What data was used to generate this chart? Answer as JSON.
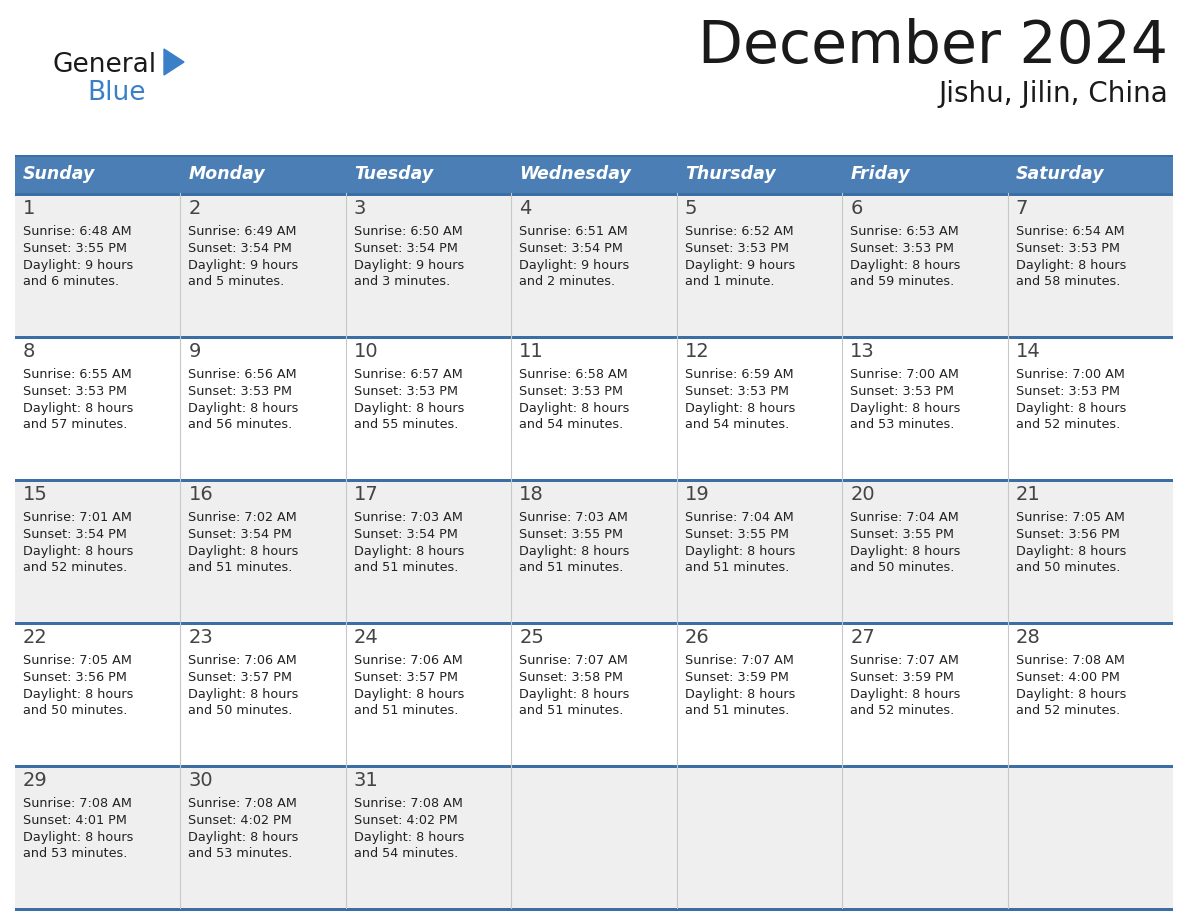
{
  "title": "December 2024",
  "subtitle": "Jishu, Jilin, China",
  "days_of_week": [
    "Sunday",
    "Monday",
    "Tuesday",
    "Wednesday",
    "Thursday",
    "Friday",
    "Saturday"
  ],
  "header_bg": "#4A7EB5",
  "header_text": "#FFFFFF",
  "cell_bg_odd": "#EFEFEF",
  "cell_bg_even": "#FFFFFF",
  "row5_bg": "#EFEFEF",
  "grid_color": "#3A6EA5",
  "title_color": "#1a1a1a",
  "text_color": "#222222",
  "logo_general_color": "#1a1a1a",
  "logo_blue_color": "#3A80C8",
  "days": [
    {
      "day": 1,
      "col": 0,
      "row": 0,
      "sunrise": "6:48 AM",
      "sunset": "3:55 PM",
      "daylight_h": "9 hours",
      "daylight_m": "and 6 minutes."
    },
    {
      "day": 2,
      "col": 1,
      "row": 0,
      "sunrise": "6:49 AM",
      "sunset": "3:54 PM",
      "daylight_h": "9 hours",
      "daylight_m": "and 5 minutes."
    },
    {
      "day": 3,
      "col": 2,
      "row": 0,
      "sunrise": "6:50 AM",
      "sunset": "3:54 PM",
      "daylight_h": "9 hours",
      "daylight_m": "and 3 minutes."
    },
    {
      "day": 4,
      "col": 3,
      "row": 0,
      "sunrise": "6:51 AM",
      "sunset": "3:54 PM",
      "daylight_h": "9 hours",
      "daylight_m": "and 2 minutes."
    },
    {
      "day": 5,
      "col": 4,
      "row": 0,
      "sunrise": "6:52 AM",
      "sunset": "3:53 PM",
      "daylight_h": "9 hours",
      "daylight_m": "and 1 minute."
    },
    {
      "day": 6,
      "col": 5,
      "row": 0,
      "sunrise": "6:53 AM",
      "sunset": "3:53 PM",
      "daylight_h": "8 hours",
      "daylight_m": "and 59 minutes."
    },
    {
      "day": 7,
      "col": 6,
      "row": 0,
      "sunrise": "6:54 AM",
      "sunset": "3:53 PM",
      "daylight_h": "8 hours",
      "daylight_m": "and 58 minutes."
    },
    {
      "day": 8,
      "col": 0,
      "row": 1,
      "sunrise": "6:55 AM",
      "sunset": "3:53 PM",
      "daylight_h": "8 hours",
      "daylight_m": "and 57 minutes."
    },
    {
      "day": 9,
      "col": 1,
      "row": 1,
      "sunrise": "6:56 AM",
      "sunset": "3:53 PM",
      "daylight_h": "8 hours",
      "daylight_m": "and 56 minutes."
    },
    {
      "day": 10,
      "col": 2,
      "row": 1,
      "sunrise": "6:57 AM",
      "sunset": "3:53 PM",
      "daylight_h": "8 hours",
      "daylight_m": "and 55 minutes."
    },
    {
      "day": 11,
      "col": 3,
      "row": 1,
      "sunrise": "6:58 AM",
      "sunset": "3:53 PM",
      "daylight_h": "8 hours",
      "daylight_m": "and 54 minutes."
    },
    {
      "day": 12,
      "col": 4,
      "row": 1,
      "sunrise": "6:59 AM",
      "sunset": "3:53 PM",
      "daylight_h": "8 hours",
      "daylight_m": "and 54 minutes."
    },
    {
      "day": 13,
      "col": 5,
      "row": 1,
      "sunrise": "7:00 AM",
      "sunset": "3:53 PM",
      "daylight_h": "8 hours",
      "daylight_m": "and 53 minutes."
    },
    {
      "day": 14,
      "col": 6,
      "row": 1,
      "sunrise": "7:00 AM",
      "sunset": "3:53 PM",
      "daylight_h": "8 hours",
      "daylight_m": "and 52 minutes."
    },
    {
      "day": 15,
      "col": 0,
      "row": 2,
      "sunrise": "7:01 AM",
      "sunset": "3:54 PM",
      "daylight_h": "8 hours",
      "daylight_m": "and 52 minutes."
    },
    {
      "day": 16,
      "col": 1,
      "row": 2,
      "sunrise": "7:02 AM",
      "sunset": "3:54 PM",
      "daylight_h": "8 hours",
      "daylight_m": "and 51 minutes."
    },
    {
      "day": 17,
      "col": 2,
      "row": 2,
      "sunrise": "7:03 AM",
      "sunset": "3:54 PM",
      "daylight_h": "8 hours",
      "daylight_m": "and 51 minutes."
    },
    {
      "day": 18,
      "col": 3,
      "row": 2,
      "sunrise": "7:03 AM",
      "sunset": "3:55 PM",
      "daylight_h": "8 hours",
      "daylight_m": "and 51 minutes."
    },
    {
      "day": 19,
      "col": 4,
      "row": 2,
      "sunrise": "7:04 AM",
      "sunset": "3:55 PM",
      "daylight_h": "8 hours",
      "daylight_m": "and 51 minutes."
    },
    {
      "day": 20,
      "col": 5,
      "row": 2,
      "sunrise": "7:04 AM",
      "sunset": "3:55 PM",
      "daylight_h": "8 hours",
      "daylight_m": "and 50 minutes."
    },
    {
      "day": 21,
      "col": 6,
      "row": 2,
      "sunrise": "7:05 AM",
      "sunset": "3:56 PM",
      "daylight_h": "8 hours",
      "daylight_m": "and 50 minutes."
    },
    {
      "day": 22,
      "col": 0,
      "row": 3,
      "sunrise": "7:05 AM",
      "sunset": "3:56 PM",
      "daylight_h": "8 hours",
      "daylight_m": "and 50 minutes."
    },
    {
      "day": 23,
      "col": 1,
      "row": 3,
      "sunrise": "7:06 AM",
      "sunset": "3:57 PM",
      "daylight_h": "8 hours",
      "daylight_m": "and 50 minutes."
    },
    {
      "day": 24,
      "col": 2,
      "row": 3,
      "sunrise": "7:06 AM",
      "sunset": "3:57 PM",
      "daylight_h": "8 hours",
      "daylight_m": "and 51 minutes."
    },
    {
      "day": 25,
      "col": 3,
      "row": 3,
      "sunrise": "7:07 AM",
      "sunset": "3:58 PM",
      "daylight_h": "8 hours",
      "daylight_m": "and 51 minutes."
    },
    {
      "day": 26,
      "col": 4,
      "row": 3,
      "sunrise": "7:07 AM",
      "sunset": "3:59 PM",
      "daylight_h": "8 hours",
      "daylight_m": "and 51 minutes."
    },
    {
      "day": 27,
      "col": 5,
      "row": 3,
      "sunrise": "7:07 AM",
      "sunset": "3:59 PM",
      "daylight_h": "8 hours",
      "daylight_m": "and 52 minutes."
    },
    {
      "day": 28,
      "col": 6,
      "row": 3,
      "sunrise": "7:08 AM",
      "sunset": "4:00 PM",
      "daylight_h": "8 hours",
      "daylight_m": "and 52 minutes."
    },
    {
      "day": 29,
      "col": 0,
      "row": 4,
      "sunrise": "7:08 AM",
      "sunset": "4:01 PM",
      "daylight_h": "8 hours",
      "daylight_m": "and 53 minutes."
    },
    {
      "day": 30,
      "col": 1,
      "row": 4,
      "sunrise": "7:08 AM",
      "sunset": "4:02 PM",
      "daylight_h": "8 hours",
      "daylight_m": "and 53 minutes."
    },
    {
      "day": 31,
      "col": 2,
      "row": 4,
      "sunrise": "7:08 AM",
      "sunset": "4:02 PM",
      "daylight_h": "8 hours",
      "daylight_m": "and 54 minutes."
    }
  ]
}
